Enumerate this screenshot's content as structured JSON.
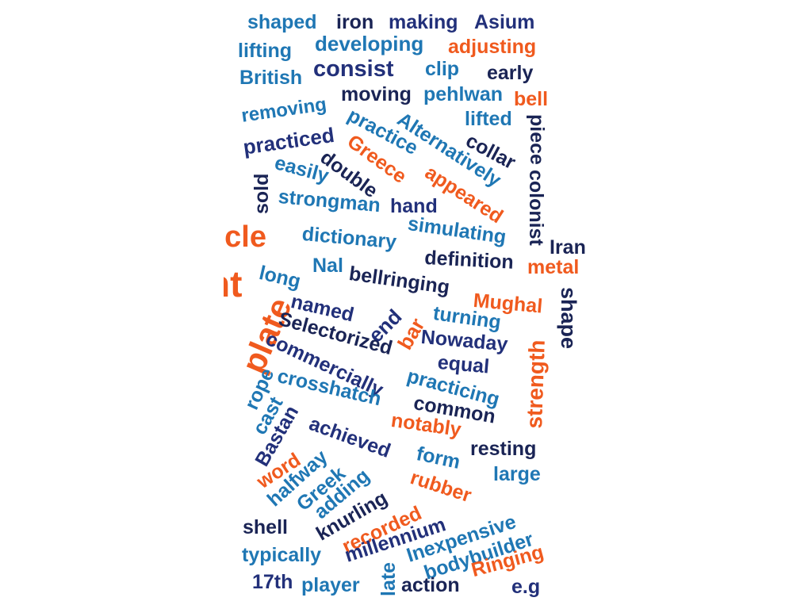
{
  "colors": {
    "light_blue": "#1f77b4",
    "dark_blue": "#22307a",
    "navy": "#1a2455",
    "orange": "#f05a1e"
  },
  "words": [
    {
      "text": "shaped",
      "color": "light_blue"
    },
    {
      "text": "iron",
      "color": "navy"
    },
    {
      "text": "making",
      "color": "dark_blue"
    },
    {
      "text": "Asium",
      "color": "dark_blue"
    },
    {
      "text": "lifting",
      "color": "light_blue"
    },
    {
      "text": "developing",
      "color": "light_blue"
    },
    {
      "text": "adjusting",
      "color": "orange"
    },
    {
      "text": "British",
      "color": "light_blue"
    },
    {
      "text": "consist",
      "color": "dark_blue"
    },
    {
      "text": "clip",
      "color": "light_blue"
    },
    {
      "text": "early",
      "color": "navy"
    },
    {
      "text": "removing",
      "color": "light_blue"
    },
    {
      "text": "moving",
      "color": "navy"
    },
    {
      "text": "pehlwan",
      "color": "light_blue"
    },
    {
      "text": "bell",
      "color": "orange"
    },
    {
      "text": "practiced",
      "color": "dark_blue"
    },
    {
      "text": "practice",
      "color": "light_blue"
    },
    {
      "text": "Alternatively",
      "color": "light_blue"
    },
    {
      "text": "lifted",
      "color": "light_blue"
    },
    {
      "text": "piece",
      "color": "navy"
    },
    {
      "text": "collar",
      "color": "navy"
    },
    {
      "text": "Greece",
      "color": "orange"
    },
    {
      "text": "easily",
      "color": "light_blue"
    },
    {
      "text": "double",
      "color": "navy"
    },
    {
      "text": "appeared",
      "color": "orange"
    },
    {
      "text": "colonist",
      "color": "navy"
    },
    {
      "text": "sold",
      "color": "navy"
    },
    {
      "text": "strongman",
      "color": "light_blue"
    },
    {
      "text": "hand",
      "color": "dark_blue"
    },
    {
      "text": "simulating",
      "color": "light_blue"
    },
    {
      "text": "scle",
      "color": "orange"
    },
    {
      "text": "dictionary",
      "color": "light_blue"
    },
    {
      "text": "Iran",
      "color": "navy"
    },
    {
      "text": "definition",
      "color": "navy"
    },
    {
      "text": "metal",
      "color": "orange"
    },
    {
      "text": "nt",
      "color": "orange"
    },
    {
      "text": "long",
      "color": "light_blue"
    },
    {
      "text": "Nal",
      "color": "light_blue"
    },
    {
      "text": "bellringing",
      "color": "navy"
    },
    {
      "text": "named",
      "color": "dark_blue"
    },
    {
      "text": "end",
      "color": "dark_blue"
    },
    {
      "text": "Mughal",
      "color": "orange"
    },
    {
      "text": "shape",
      "color": "navy"
    },
    {
      "text": "plate",
      "color": "orange"
    },
    {
      "text": "Selectorized",
      "color": "navy"
    },
    {
      "text": "bar",
      "color": "orange"
    },
    {
      "text": "turning",
      "color": "light_blue"
    },
    {
      "text": "commercially",
      "color": "dark_blue"
    },
    {
      "text": "Nowaday",
      "color": "dark_blue"
    },
    {
      "text": "strength",
      "color": "orange"
    },
    {
      "text": "equal",
      "color": "dark_blue"
    },
    {
      "text": "rope",
      "color": "light_blue"
    },
    {
      "text": "crosshatch",
      "color": "light_blue"
    },
    {
      "text": "practicing",
      "color": "light_blue"
    },
    {
      "text": "cast",
      "color": "light_blue"
    },
    {
      "text": "common",
      "color": "navy"
    },
    {
      "text": "Bastan",
      "color": "dark_blue"
    },
    {
      "text": "achieved",
      "color": "dark_blue"
    },
    {
      "text": "notably",
      "color": "orange"
    },
    {
      "text": "resting",
      "color": "navy"
    },
    {
      "text": "word",
      "color": "orange"
    },
    {
      "text": "form",
      "color": "light_blue"
    },
    {
      "text": "halfway",
      "color": "light_blue"
    },
    {
      "text": "Greek",
      "color": "light_blue"
    },
    {
      "text": "large",
      "color": "light_blue"
    },
    {
      "text": "adding",
      "color": "light_blue"
    },
    {
      "text": "rubber",
      "color": "orange"
    },
    {
      "text": "knurling",
      "color": "navy"
    },
    {
      "text": "recorded",
      "color": "orange"
    },
    {
      "text": "shell",
      "color": "navy"
    },
    {
      "text": "millennium",
      "color": "dark_blue"
    },
    {
      "text": "Inexpensive",
      "color": "light_blue"
    },
    {
      "text": "bodybuilder",
      "color": "light_blue"
    },
    {
      "text": "typically",
      "color": "light_blue"
    },
    {
      "text": "Ringing",
      "color": "orange"
    },
    {
      "text": "17th",
      "color": "dark_blue"
    },
    {
      "text": "player",
      "color": "light_blue"
    },
    {
      "text": "late",
      "color": "light_blue"
    },
    {
      "text": "action",
      "color": "navy"
    },
    {
      "text": "e.g",
      "color": "dark_blue"
    }
  ]
}
